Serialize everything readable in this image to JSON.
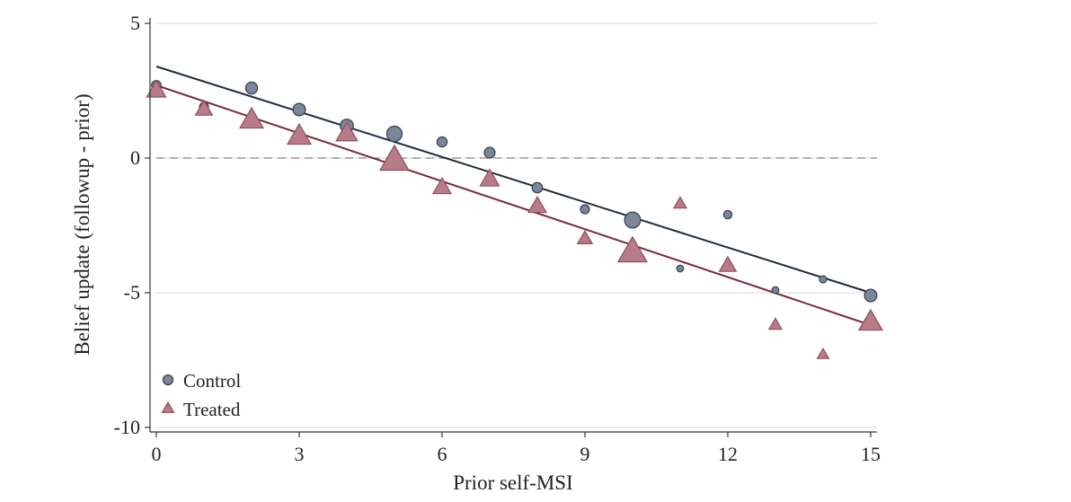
{
  "chart_data": {
    "type": "scatter",
    "title": "",
    "xlabel": "Prior self-MSI",
    "ylabel": "Belief update (followup - prior)",
    "xlim": [
      0,
      15
    ],
    "ylim": [
      -10,
      5
    ],
    "xticks": [
      "0",
      "3",
      "6",
      "9",
      "12",
      "15"
    ],
    "yticks": [
      "5",
      "0",
      "-5",
      "-10"
    ],
    "grid": true,
    "reference_line": 0,
    "legend_position": "bottom-left",
    "colors": {
      "control_fill": "#7b8799",
      "control_line": "#1e2b3e",
      "treated_fill": "#b87c88",
      "treated_line": "#7a2a3a",
      "grid": "#e6e6e6",
      "reference": "#999999"
    },
    "series": [
      {
        "name": "Control",
        "marker": "circle",
        "points": [
          {
            "x": 0,
            "y": 2.7,
            "w": 0.35
          },
          {
            "x": 1,
            "y": 1.9,
            "w": 0.3
          },
          {
            "x": 2,
            "y": 2.6,
            "w": 0.55
          },
          {
            "x": 3,
            "y": 1.8,
            "w": 0.6
          },
          {
            "x": 4,
            "y": 1.2,
            "w": 0.65
          },
          {
            "x": 5,
            "y": 0.9,
            "w": 0.85
          },
          {
            "x": 6,
            "y": 0.6,
            "w": 0.4
          },
          {
            "x": 7,
            "y": 0.2,
            "w": 0.45
          },
          {
            "x": 8,
            "y": -1.1,
            "w": 0.42
          },
          {
            "x": 9,
            "y": -1.9,
            "w": 0.3
          },
          {
            "x": 10,
            "y": -2.3,
            "w": 0.9
          },
          {
            "x": 11,
            "y": -4.1,
            "w": 0.12
          },
          {
            "x": 12,
            "y": -2.1,
            "w": 0.25
          },
          {
            "x": 13,
            "y": -4.9,
            "w": 0.12
          },
          {
            "x": 14,
            "y": -4.5,
            "w": 0.15
          },
          {
            "x": 15,
            "y": -5.1,
            "w": 0.6
          }
        ],
        "fit": {
          "x0": 0,
          "y0": 3.4,
          "x1": 15,
          "y1": -5.0
        }
      },
      {
        "name": "Treated",
        "marker": "triangle",
        "points": [
          {
            "x": 0,
            "y": 2.5,
            "w": 0.55
          },
          {
            "x": 1,
            "y": 1.8,
            "w": 0.45
          },
          {
            "x": 2,
            "y": 1.4,
            "w": 0.75
          },
          {
            "x": 3,
            "y": 0.8,
            "w": 0.75
          },
          {
            "x": 4,
            "y": 0.9,
            "w": 0.65
          },
          {
            "x": 5,
            "y": -0.1,
            "w": 1.0
          },
          {
            "x": 6,
            "y": -1.1,
            "w": 0.5
          },
          {
            "x": 7,
            "y": -0.8,
            "w": 0.55
          },
          {
            "x": 8,
            "y": -1.8,
            "w": 0.5
          },
          {
            "x": 9,
            "y": -3.0,
            "w": 0.35
          },
          {
            "x": 10,
            "y": -3.5,
            "w": 1.0
          },
          {
            "x": 11,
            "y": -1.7,
            "w": 0.25
          },
          {
            "x": 12,
            "y": -4.0,
            "w": 0.45
          },
          {
            "x": 13,
            "y": -6.2,
            "w": 0.25
          },
          {
            "x": 14,
            "y": -7.3,
            "w": 0.2
          },
          {
            "x": 15,
            "y": -6.1,
            "w": 0.75
          }
        ],
        "fit": {
          "x0": 0,
          "y0": 2.7,
          "x1": 15,
          "y1": -6.2
        }
      }
    ]
  }
}
